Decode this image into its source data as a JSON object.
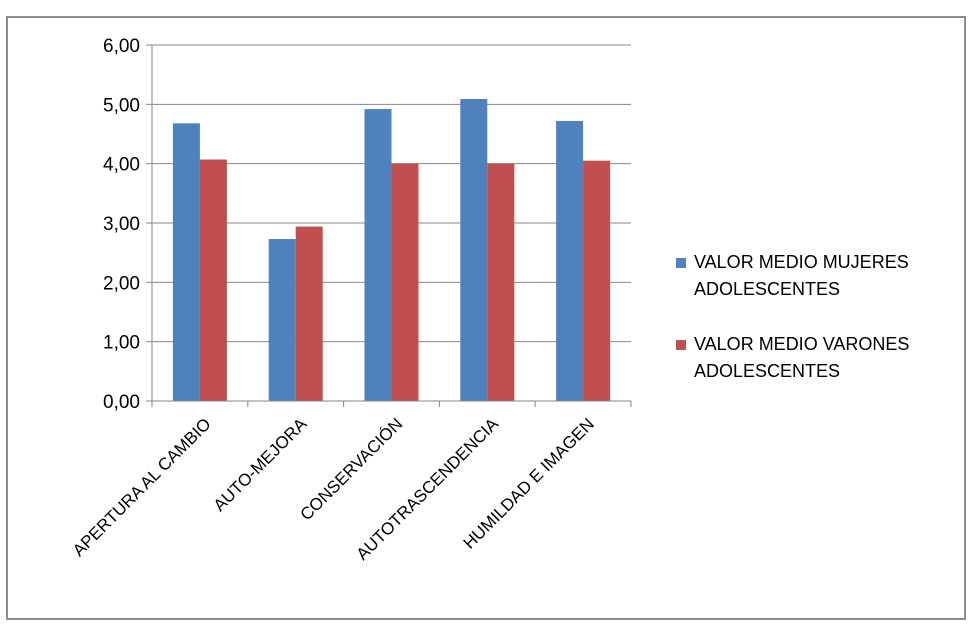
{
  "chart_data": {
    "type": "bar",
    "title": "",
    "xlabel": "",
    "ylabel": "",
    "categories": [
      "APERTURA AL CAMBIO",
      "AUTO-MEJORA",
      "CONSERVACIÓN",
      "AUTOTRASCENDENCIA",
      "HUMILDAD E IMAGEN"
    ],
    "series": [
      {
        "name": "VALOR MEDIO MUJERES ADOLESCENTES",
        "name_lines": [
          "VALOR MEDIO MUJERES",
          "ADOLESCENTES"
        ],
        "color": "#4f81bd",
        "values": [
          4.68,
          2.73,
          4.92,
          5.09,
          4.72
        ]
      },
      {
        "name": "VALOR MEDIO VARONES ADOLESCENTES",
        "name_lines": [
          "VALOR MEDIO VARONES",
          "ADOLESCENTES"
        ],
        "color": "#c0504d",
        "values": [
          4.07,
          2.94,
          4.0,
          4.0,
          4.05
        ]
      }
    ],
    "ylim": [
      0,
      6
    ],
    "yticks": [
      "0,00",
      "1,00",
      "2,00",
      "3,00",
      "4,00",
      "5,00",
      "6,00"
    ],
    "grid": true,
    "legend_position": "right"
  }
}
